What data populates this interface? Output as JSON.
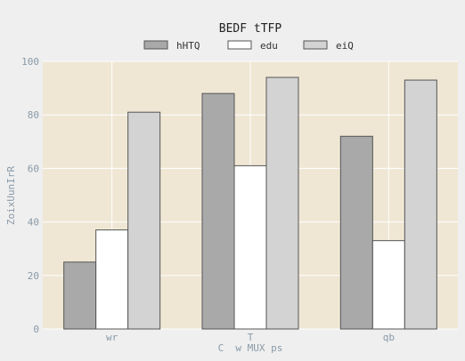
{
  "chart_data": {
    "type": "bar",
    "title": "BEDF tTFP",
    "xlabel": "C  w MUX ps",
    "ylabel": "ZoixUunIrR",
    "categories": [
      "wr",
      "T",
      "qb"
    ],
    "series": [
      {
        "name": "hHTQ",
        "values": [
          25,
          88,
          72
        ],
        "color": "#a9a9a9"
      },
      {
        "name": "edu",
        "values": [
          37,
          61,
          33
        ],
        "color": "#ffffff"
      },
      {
        "name": "eiQ",
        "values": [
          81,
          94,
          93
        ],
        "color": "#d3d3d3"
      }
    ],
    "ylim": [
      0,
      100
    ],
    "yticks": [
      0,
      20,
      40,
      60,
      80,
      100
    ],
    "grid": true,
    "legend_position": "top-center",
    "plot_background": "#efe7d4",
    "page_background": "#efefef"
  }
}
